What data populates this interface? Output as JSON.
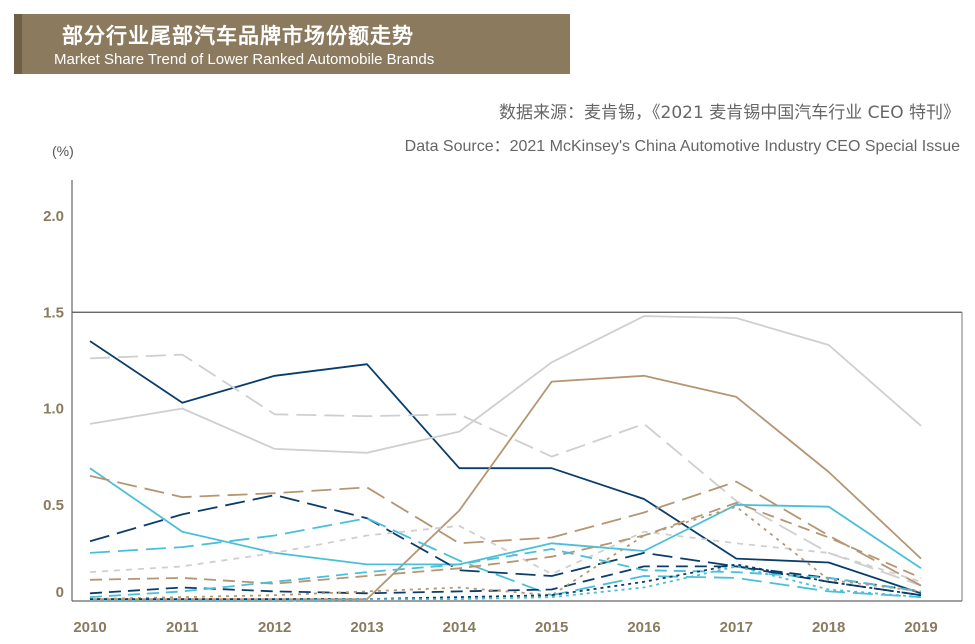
{
  "header": {
    "title_zh": "部分行业尾部汽车品牌市场份额走势",
    "title_en": "Market Share Trend of Lower Ranked  Automobile Brands"
  },
  "source": {
    "zh": "数据来源：麦肯锡，《2021 麦肯锡中国汽车行业 CEO 特刊》",
    "en": "Data Source：2021 McKinsey's China Automotive Industry CEO Special Issue"
  },
  "colors": {
    "title_bg": "#8c7a5f",
    "title_edge": "#6f5f47",
    "tick": "#8a7a5f",
    "navy": "#0b3d6b",
    "tan": "#b59673",
    "light_gray": "#cfcfcf",
    "cyan": "#4bbfd9"
  },
  "chart_data": {
    "type": "line",
    "unit": "(%)",
    "ylim": [
      0,
      2.0
    ],
    "yticks": [
      "0",
      "0.5",
      "1.0",
      "1.5",
      "2.0"
    ],
    "ytick_values": [
      0,
      0.5,
      1.0,
      1.5,
      2.0
    ],
    "x": [
      "2010",
      "2011",
      "2012",
      "2013",
      "2014",
      "2015",
      "2016",
      "2017",
      "2018",
      "2019"
    ],
    "reference_line": 1.5,
    "series": [
      {
        "color": "#0b3d6b",
        "dash": "",
        "values": [
          1.35,
          1.03,
          1.17,
          1.23,
          0.69,
          0.69,
          0.53,
          0.22,
          0.2,
          0.04
        ]
      },
      {
        "color": "#cfcfcf",
        "dash": "",
        "values": [
          0.92,
          1.0,
          0.79,
          0.77,
          0.88,
          1.24,
          1.48,
          1.47,
          1.33,
          0.91
        ]
      },
      {
        "color": "#cfcfcf",
        "dash": "20,8",
        "values": [
          1.26,
          1.28,
          0.97,
          0.96,
          0.97,
          0.75,
          0.92,
          0.52,
          0.25,
          0.08
        ]
      },
      {
        "color": "#b59673",
        "dash": "",
        "values": [
          0.01,
          0.01,
          0.01,
          0.01,
          0.47,
          1.14,
          1.17,
          1.06,
          0.67,
          0.22
        ]
      },
      {
        "color": "#4bbfd9",
        "dash": "",
        "values": [
          0.69,
          0.36,
          0.25,
          0.19,
          0.19,
          0.3,
          0.26,
          0.5,
          0.49,
          0.17
        ]
      },
      {
        "color": "#b59673",
        "dash": "20,8",
        "values": [
          0.65,
          0.54,
          0.56,
          0.59,
          0.3,
          0.33,
          0.46,
          0.62,
          0.34,
          0.08
        ]
      },
      {
        "color": "#0b3d6b",
        "dash": "20,8",
        "values": [
          0.31,
          0.45,
          0.55,
          0.43,
          0.16,
          0.13,
          0.25,
          0.18,
          0.1,
          0.03
        ]
      },
      {
        "color": "#4bbfd9",
        "dash": "20,8",
        "values": [
          0.25,
          0.28,
          0.34,
          0.43,
          0.21,
          0.03,
          0.13,
          0.12,
          0.05,
          0.02
        ]
      },
      {
        "color": "#cfcfcf",
        "dash": "6,6",
        "values": [
          0.15,
          0.18,
          0.25,
          0.34,
          0.39,
          0.14,
          0.36,
          0.3,
          0.25,
          0.1
        ]
      },
      {
        "color": "#b59673",
        "dash": "12,7",
        "values": [
          0.11,
          0.12,
          0.09,
          0.13,
          0.17,
          0.23,
          0.34,
          0.51,
          0.33,
          0.12
        ]
      },
      {
        "color": "#0b3d6b",
        "dash": "12,7",
        "values": [
          0.04,
          0.07,
          0.05,
          0.04,
          0.05,
          0.06,
          0.18,
          0.18,
          0.12,
          0.05
        ]
      },
      {
        "color": "#4bbfd9",
        "dash": "12,7",
        "values": [
          0.02,
          0.05,
          0.1,
          0.15,
          0.19,
          0.27,
          0.16,
          0.15,
          0.12,
          0.05
        ]
      },
      {
        "color": "#b59673",
        "dash": "3,5",
        "values": [
          0.01,
          0.02,
          0.03,
          0.05,
          0.07,
          0.03,
          0.34,
          0.49,
          0.11,
          0.05
        ]
      },
      {
        "color": "#0b3d6b",
        "dash": "3,4",
        "values": [
          0.01,
          0.01,
          0.01,
          0.01,
          0.02,
          0.03,
          0.1,
          0.19,
          0.1,
          0.03
        ]
      },
      {
        "color": "#4bbfd9",
        "dash": "3,4",
        "values": [
          0.0,
          0.0,
          0.0,
          0.01,
          0.01,
          0.02,
          0.07,
          0.18,
          0.06,
          0.02
        ]
      }
    ]
  }
}
